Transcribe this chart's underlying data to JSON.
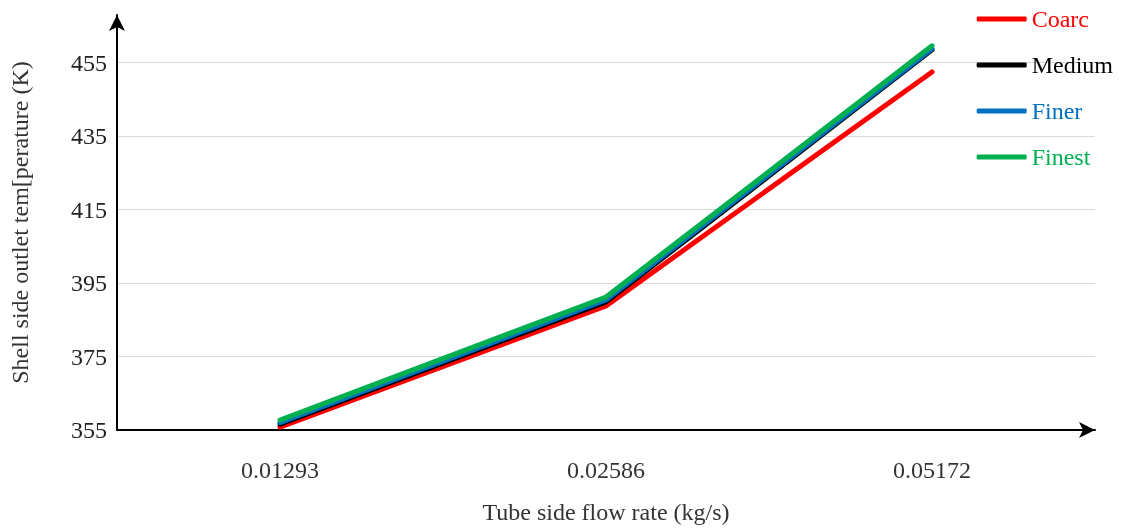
{
  "chart_data": {
    "type": "line",
    "xlabel": "Tube side flow rate (kg/s)",
    "ylabel": "Shell side outlet tem[perature (K)",
    "categories": [
      "0.01293",
      "0.02586",
      "0.05172"
    ],
    "series": [
      {
        "name": "Coarc",
        "color": "#ff0000",
        "values": [
          355.8,
          388.8,
          452.5
        ]
      },
      {
        "name": "Medium",
        "color": "#000000",
        "values": [
          356.6,
          389.9,
          458.5
        ]
      },
      {
        "name": "Finer",
        "color": "#0070c0",
        "values": [
          357,
          390.4,
          458.8
        ]
      },
      {
        "name": "Finest",
        "color": "#00b050",
        "values": [
          357.7,
          391.2,
          459.6
        ]
      }
    ],
    "ylim": [
      355,
      468
    ],
    "yticks": [
      355,
      375,
      395,
      415,
      435,
      455
    ],
    "grid": "y",
    "legend": "top right",
    "marker": "none",
    "line_style": "solid"
  }
}
